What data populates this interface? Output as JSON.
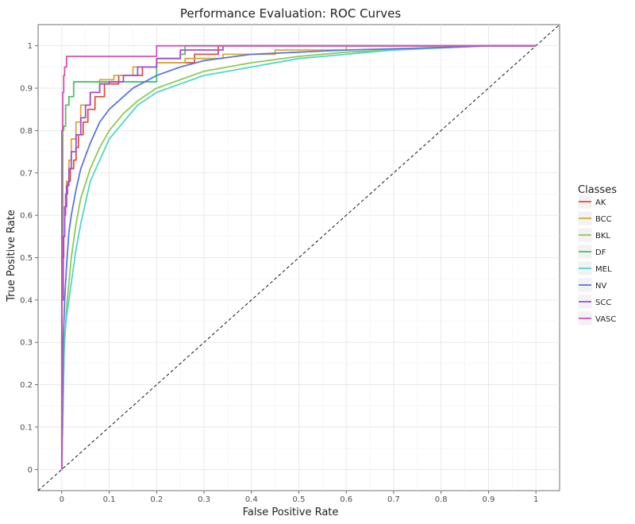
{
  "chart_data": {
    "type": "line",
    "title": "Performance Evaluation: ROC Curves",
    "xlabel": "False Positive Rate",
    "ylabel": "True Positive Rate",
    "xlim": [
      -0.05,
      1.05
    ],
    "ylim": [
      -0.05,
      1.05
    ],
    "xticks": [
      0,
      0.1,
      0.2,
      0.3,
      0.4,
      0.5,
      0.6,
      0.7,
      0.8,
      0.9,
      1
    ],
    "yticks": [
      0,
      0.1,
      0.2,
      0.3,
      0.4,
      0.5,
      0.6,
      0.7,
      0.8,
      0.9,
      1
    ],
    "tick_labels_x": [
      "0",
      "0.1",
      "0.2",
      "0.3",
      "0.4",
      "0.5",
      "0.6",
      "0.7",
      "0.8",
      "0.9",
      "1"
    ],
    "tick_labels_y": [
      "0",
      "0.1",
      "0.2",
      "0.3",
      "0.4",
      "0.5",
      "0.6",
      "0.7",
      "0.8",
      "0.9",
      "1"
    ],
    "grid": true,
    "legend": {
      "title": "Classes",
      "placement": "right"
    },
    "reference_line": {
      "x": [
        0,
        1
      ],
      "y": [
        0,
        1
      ],
      "style": "dashed",
      "color": "#000000"
    },
    "series": [
      {
        "name": "AK",
        "color": "#E0503A",
        "step": true,
        "x": [
          0,
          0,
          0.002,
          0.004,
          0.006,
          0.008,
          0.012,
          0.018,
          0.025,
          0.03,
          0.035,
          0.045,
          0.055,
          0.07,
          0.09,
          0.12,
          0.17,
          0.2,
          0.28,
          0.33,
          1
        ],
        "y": [
          0,
          0.4,
          0.5,
          0.55,
          0.6,
          0.65,
          0.68,
          0.71,
          0.73,
          0.76,
          0.79,
          0.82,
          0.85,
          0.88,
          0.91,
          0.93,
          0.95,
          0.96,
          0.98,
          1,
          1
        ]
      },
      {
        "name": "BCC",
        "color": "#D6A83C",
        "step": true,
        "x": [
          0,
          0,
          0.003,
          0.006,
          0.01,
          0.015,
          0.02,
          0.03,
          0.04,
          0.06,
          0.08,
          0.11,
          0.15,
          0.2,
          0.26,
          0.34,
          0.45,
          0.6,
          1
        ],
        "y": [
          0,
          0.4,
          0.55,
          0.62,
          0.68,
          0.73,
          0.78,
          0.82,
          0.86,
          0.89,
          0.92,
          0.93,
          0.95,
          0.96,
          0.97,
          0.98,
          0.99,
          1,
          1
        ]
      },
      {
        "name": "BKL",
        "color": "#8DCB4E",
        "step": false,
        "x": [
          0,
          0.005,
          0.01,
          0.02,
          0.03,
          0.04,
          0.06,
          0.08,
          0.1,
          0.13,
          0.16,
          0.2,
          0.25,
          0.3,
          0.4,
          0.5,
          0.6,
          0.7,
          0.8,
          0.9,
          1
        ],
        "y": [
          0,
          0.28,
          0.38,
          0.5,
          0.58,
          0.64,
          0.71,
          0.76,
          0.8,
          0.84,
          0.87,
          0.9,
          0.92,
          0.94,
          0.96,
          0.975,
          0.985,
          0.99,
          0.995,
          1,
          1
        ]
      },
      {
        "name": "DF",
        "color": "#48C268",
        "step": true,
        "x": [
          0,
          0,
          0.002,
          0.004,
          0.008,
          0.015,
          0.025,
          0.2,
          0.25,
          0.26,
          1
        ],
        "y": [
          0,
          0.55,
          0.8,
          0.81,
          0.86,
          0.88,
          0.915,
          0.97,
          0.98,
          1,
          1
        ]
      },
      {
        "name": "MEL",
        "color": "#4FD6D0",
        "step": false,
        "x": [
          0,
          0.005,
          0.01,
          0.02,
          0.03,
          0.04,
          0.05,
          0.06,
          0.08,
          0.1,
          0.13,
          0.16,
          0.2,
          0.25,
          0.3,
          0.35,
          0.4,
          0.5,
          0.6,
          0.7,
          0.8,
          0.9,
          1
        ],
        "y": [
          0,
          0.3,
          0.36,
          0.44,
          0.52,
          0.58,
          0.63,
          0.68,
          0.73,
          0.78,
          0.82,
          0.86,
          0.89,
          0.91,
          0.93,
          0.94,
          0.95,
          0.97,
          0.98,
          0.99,
          0.995,
          1,
          1
        ]
      },
      {
        "name": "NV",
        "color": "#5A77D8",
        "step": false,
        "x": [
          0,
          0.003,
          0.006,
          0.01,
          0.015,
          0.02,
          0.03,
          0.04,
          0.06,
          0.08,
          0.1,
          0.12,
          0.15,
          0.2,
          0.25,
          0.3,
          0.4,
          0.5,
          0.6,
          0.7,
          0.8,
          0.9,
          1
        ],
        "y": [
          0,
          0.3,
          0.4,
          0.48,
          0.56,
          0.6,
          0.66,
          0.71,
          0.77,
          0.82,
          0.85,
          0.87,
          0.9,
          0.93,
          0.95,
          0.965,
          0.98,
          0.985,
          0.99,
          0.993,
          0.996,
          1,
          1
        ]
      },
      {
        "name": "SCC",
        "color": "#A14FD6",
        "step": true,
        "x": [
          0,
          0,
          0.003,
          0.006,
          0.01,
          0.015,
          0.02,
          0.03,
          0.04,
          0.05,
          0.06,
          0.08,
          0.1,
          0.13,
          0.16,
          0.2,
          0.25,
          0.34,
          1
        ],
        "y": [
          0,
          0.4,
          0.55,
          0.62,
          0.67,
          0.71,
          0.75,
          0.79,
          0.83,
          0.86,
          0.89,
          0.91,
          0.915,
          0.93,
          0.95,
          0.97,
          0.99,
          1,
          1
        ]
      },
      {
        "name": "VASC",
        "color": "#D84FB5",
        "step": true,
        "x": [
          0,
          0,
          0.002,
          0.004,
          0.006,
          0.01,
          0.2,
          0.2,
          1
        ],
        "y": [
          0,
          0.8,
          0.89,
          0.93,
          0.95,
          0.975,
          0.975,
          1,
          1
        ]
      }
    ]
  }
}
